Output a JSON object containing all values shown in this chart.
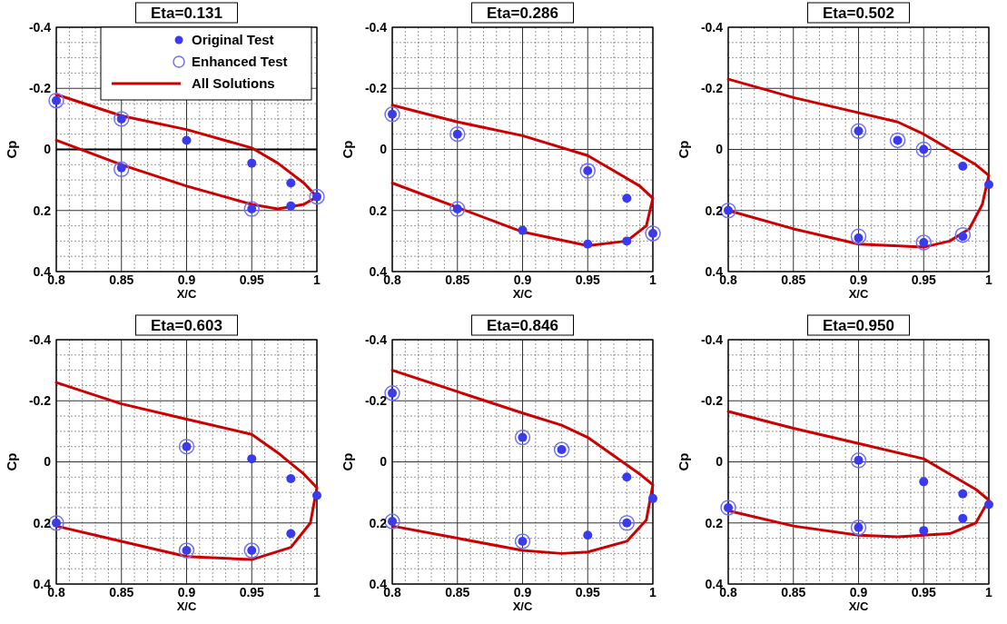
{
  "chart_data": [
    {
      "type": "scatter",
      "title": "Eta=0.131",
      "xlabel": "X/C",
      "ylabel": "Cp",
      "xlim": [
        0.8,
        1
      ],
      "xticks": [
        0.8,
        0.85,
        0.9,
        0.95,
        1
      ],
      "ylim": [
        0.4,
        -0.4
      ],
      "yticks": [
        -0.4,
        -0.2,
        0,
        0.2,
        0.4
      ],
      "grid": true,
      "legend": "top right",
      "ref_lines": [
        {
          "axis": "y",
          "value": 0,
          "color": "#000000"
        }
      ],
      "series": [
        {
          "name": "All Solutions",
          "type": "line",
          "color": "#cc0000",
          "marker": "none",
          "line_style": "solid",
          "x": [
            0.8,
            0.85,
            0.9,
            0.95,
            0.97,
            0.99,
            1,
            0.99,
            0.97,
            0.95,
            0.9,
            0.85,
            0.8
          ],
          "values": [
            -0.18,
            -0.11,
            -0.065,
            -0.005,
            0.045,
            0.11,
            0.155,
            0.18,
            0.195,
            0.18,
            0.12,
            0.05,
            -0.03
          ]
        },
        {
          "name": "Original Test",
          "color": "#3a3af0",
          "marker": "circle",
          "x": [
            0.8,
            0.85,
            0.9,
            0.95,
            0.98,
            1,
            0.85,
            0.95,
            0.98
          ],
          "values": [
            -0.16,
            -0.1,
            -0.03,
            0.045,
            0.11,
            0.155,
            0.06,
            0.195,
            0.185
          ]
        },
        {
          "name": "Enhanced Test",
          "color": "#7070ff",
          "marker": "circle",
          "x": [
            0.8,
            0.85,
            0.85,
            0.95,
            1
          ],
          "values": [
            -0.16,
            -0.1,
            0.065,
            0.195,
            0.155
          ]
        }
      ]
    },
    {
      "type": "scatter",
      "title": "Eta=0.286",
      "xlabel": "X/C",
      "ylabel": "Cp",
      "xlim": [
        0.8,
        1
      ],
      "xticks": [
        0.8,
        0.85,
        0.9,
        0.95,
        1
      ],
      "ylim": [
        0.4,
        -0.4
      ],
      "yticks": [
        -0.4,
        -0.2,
        0,
        0.2,
        0.4
      ],
      "grid": true,
      "series": [
        {
          "type": "line",
          "color": "#cc0000",
          "marker": "none",
          "line_style": "solid",
          "x": [
            0.8,
            0.85,
            0.9,
            0.95,
            0.97,
            0.99,
            1,
            0.995,
            0.98,
            0.95,
            0.9,
            0.85,
            0.8
          ],
          "values": [
            -0.145,
            -0.09,
            -0.045,
            0.02,
            0.07,
            0.12,
            0.16,
            0.25,
            0.3,
            0.315,
            0.27,
            0.19,
            0.11
          ]
        },
        {
          "color": "#3a3af0",
          "marker": "circle",
          "x": [
            0.8,
            0.85,
            0.95,
            0.98,
            1,
            0.85,
            0.9,
            0.95,
            0.98
          ],
          "values": [
            -0.115,
            -0.05,
            0.07,
            0.16,
            0.275,
            0.195,
            0.265,
            0.31,
            0.3
          ]
        },
        {
          "color": "#7070ff",
          "marker": "circle",
          "x": [
            0.8,
            0.85,
            0.95,
            0.85,
            1
          ],
          "values": [
            -0.115,
            -0.05,
            0.07,
            0.195,
            0.275
          ]
        }
      ]
    },
    {
      "type": "scatter",
      "title": "Eta=0.502",
      "xlabel": "X/C",
      "ylabel": "Cp",
      "xlim": [
        0.8,
        1
      ],
      "xticks": [
        0.8,
        0.85,
        0.9,
        0.95,
        1
      ],
      "ylim": [
        0.4,
        -0.4
      ],
      "yticks": [
        -0.4,
        -0.2,
        0,
        0.2,
        0.4
      ],
      "grid": true,
      "series": [
        {
          "type": "line",
          "color": "#cc0000",
          "marker": "none",
          "line_style": "solid",
          "x": [
            0.8,
            0.85,
            0.9,
            0.93,
            0.95,
            0.97,
            0.99,
            1,
            0.995,
            0.985,
            0.97,
            0.95,
            0.9,
            0.85,
            0.8
          ],
          "values": [
            -0.23,
            -0.17,
            -0.12,
            -0.09,
            -0.05,
            0,
            0.05,
            0.085,
            0.18,
            0.26,
            0.3,
            0.32,
            0.31,
            0.26,
            0.2
          ]
        },
        {
          "color": "#3a3af0",
          "marker": "circle",
          "x": [
            0.9,
            0.93,
            0.95,
            0.98,
            1,
            0.8,
            0.9,
            0.95,
            0.98
          ],
          "values": [
            -0.06,
            -0.03,
            0,
            0.055,
            0.115,
            0.2,
            0.29,
            0.305,
            0.285
          ]
        },
        {
          "color": "#7070ff",
          "marker": "circle",
          "x": [
            0.9,
            0.93,
            0.95,
            0.8,
            0.9,
            0.95,
            0.98
          ],
          "values": [
            -0.06,
            -0.03,
            0,
            0.2,
            0.285,
            0.305,
            0.28
          ]
        }
      ]
    },
    {
      "type": "scatter",
      "title": "Eta=0.603",
      "xlabel": "X/C",
      "ylabel": "Cp",
      "xlim": [
        0.8,
        1
      ],
      "xticks": [
        0.8,
        0.85,
        0.9,
        0.95,
        1
      ],
      "ylim": [
        0.4,
        -0.4
      ],
      "yticks": [
        -0.4,
        -0.2,
        0,
        0.2,
        0.4
      ],
      "grid": true,
      "series": [
        {
          "type": "line",
          "color": "#cc0000",
          "marker": "none",
          "line_style": "solid",
          "x": [
            0.8,
            0.85,
            0.9,
            0.95,
            0.97,
            0.99,
            1,
            0.995,
            0.98,
            0.95,
            0.9,
            0.85,
            0.8
          ],
          "values": [
            -0.26,
            -0.19,
            -0.14,
            -0.09,
            -0.03,
            0.04,
            0.085,
            0.2,
            0.28,
            0.32,
            0.31,
            0.26,
            0.21
          ]
        },
        {
          "color": "#3a3af0",
          "marker": "circle",
          "x": [
            0.9,
            0.95,
            0.98,
            1,
            0.8,
            0.9,
            0.95,
            0.98
          ],
          "values": [
            -0.05,
            -0.01,
            0.055,
            0.11,
            0.2,
            0.29,
            0.29,
            0.235
          ]
        },
        {
          "color": "#7070ff",
          "marker": "circle",
          "x": [
            0.9,
            0.8,
            0.9,
            0.95
          ],
          "values": [
            -0.05,
            0.2,
            0.29,
            0.29
          ]
        }
      ]
    },
    {
      "type": "scatter",
      "title": "Eta=0.846",
      "xlabel": "X/C",
      "ylabel": "Cp",
      "xlim": [
        0.8,
        1
      ],
      "xticks": [
        0.8,
        0.85,
        0.9,
        0.95,
        1
      ],
      "ylim": [
        0.4,
        -0.4
      ],
      "yticks": [
        -0.4,
        -0.2,
        0,
        0.2,
        0.4
      ],
      "grid": true,
      "series": [
        {
          "type": "line",
          "color": "#cc0000",
          "marker": "none",
          "line_style": "solid",
          "x": [
            0.8,
            0.85,
            0.9,
            0.93,
            0.95,
            0.97,
            0.99,
            1,
            0.995,
            0.98,
            0.95,
            0.93,
            0.9,
            0.85,
            0.8
          ],
          "values": [
            -0.3,
            -0.23,
            -0.16,
            -0.12,
            -0.08,
            -0.02,
            0.04,
            0.075,
            0.19,
            0.26,
            0.295,
            0.3,
            0.29,
            0.25,
            0.21
          ]
        },
        {
          "color": "#3a3af0",
          "marker": "circle",
          "x": [
            0.8,
            0.9,
            0.93,
            0.98,
            1,
            0.8,
            0.9,
            0.95,
            0.98
          ],
          "values": [
            -0.225,
            -0.08,
            -0.04,
            0.05,
            0.12,
            0.195,
            0.26,
            0.24,
            0.2
          ]
        },
        {
          "color": "#7070ff",
          "marker": "circle",
          "x": [
            0.8,
            0.9,
            0.93,
            0.8,
            0.9,
            0.98
          ],
          "values": [
            -0.225,
            -0.08,
            -0.04,
            0.195,
            0.26,
            0.2
          ]
        }
      ]
    },
    {
      "type": "scatter",
      "title": "Eta=0.950",
      "xlabel": "X/C",
      "ylabel": "Cp",
      "xlim": [
        0.8,
        1
      ],
      "xticks": [
        0.8,
        0.85,
        0.9,
        0.95,
        1
      ],
      "ylim": [
        0.4,
        -0.4
      ],
      "yticks": [
        -0.4,
        -0.2,
        0,
        0.2,
        0.4
      ],
      "grid": true,
      "series": [
        {
          "type": "line",
          "color": "#cc0000",
          "marker": "none",
          "line_style": "solid",
          "x": [
            0.8,
            0.85,
            0.9,
            0.95,
            0.97,
            0.99,
            1,
            0.99,
            0.97,
            0.93,
            0.9,
            0.85,
            0.8
          ],
          "values": [
            -0.165,
            -0.11,
            -0.06,
            -0.01,
            0.04,
            0.09,
            0.125,
            0.2,
            0.235,
            0.245,
            0.24,
            0.21,
            0.16
          ]
        },
        {
          "color": "#3a3af0",
          "marker": "circle",
          "x": [
            0.9,
            0.95,
            0.98,
            1,
            0.8,
            0.9,
            0.95,
            0.98
          ],
          "values": [
            -0.005,
            0.065,
            0.105,
            0.14,
            0.15,
            0.215,
            0.225,
            0.185
          ]
        },
        {
          "color": "#7070ff",
          "marker": "circle",
          "x": [
            0.9,
            0.8,
            0.9
          ],
          "values": [
            -0.005,
            0.15,
            0.215
          ]
        }
      ]
    }
  ]
}
